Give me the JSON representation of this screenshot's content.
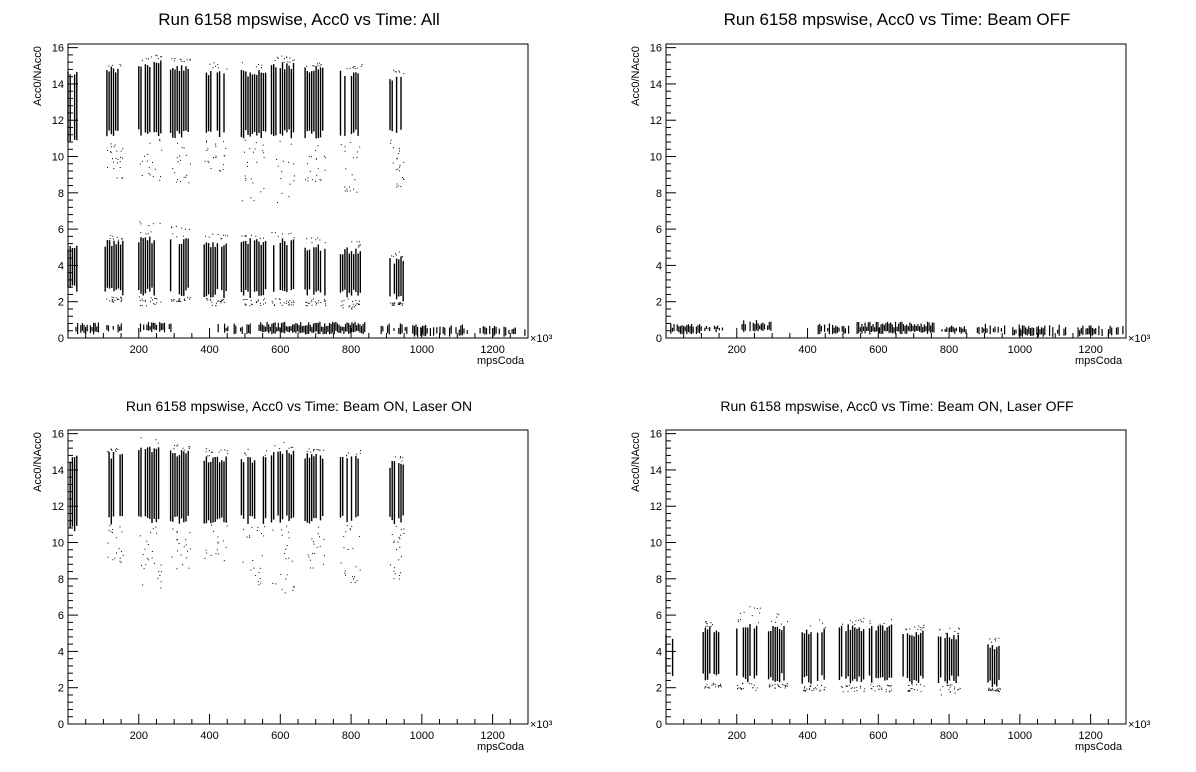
{
  "chart_data": [
    {
      "type": "scatter",
      "title": "Run 6158 mpswise, Acc0 vs Time: All",
      "xlabel": "mpsCoda",
      "ylabel": "Acc0/NAcc0",
      "x_multiplier_label": "×10³",
      "xlim": [
        0,
        1300
      ],
      "ylim": [
        0,
        16.2
      ],
      "x_ticks": [
        200,
        400,
        600,
        800,
        1000,
        1200
      ],
      "y_ticks": [
        0,
        2,
        4,
        6,
        8,
        10,
        12,
        14,
        16
      ],
      "series": [
        {
          "bands": [
            {
              "x": [
                0,
                30
              ],
              "y": [
                10.5,
                14.8
              ]
            },
            {
              "x": [
                110,
                155
              ],
              "y": [
                11.0,
                15.0
              ],
              "ext": [
                8.8,
                15.2
              ]
            },
            {
              "x": [
                200,
                265
              ],
              "y": [
                11.0,
                15.3
              ],
              "ext": [
                8.7,
                15.7
              ]
            },
            {
              "x": [
                290,
                345
              ],
              "y": [
                11.0,
                15.1
              ],
              "ext": [
                8.5,
                15.5
              ]
            },
            {
              "x": [
                385,
                450
              ],
              "y": [
                11.0,
                14.8
              ],
              "ext": [
                9.2,
                15.2
              ]
            },
            {
              "x": [
                490,
                560
              ],
              "y": [
                11.0,
                14.8
              ],
              "ext": [
                7.5,
                15.2
              ]
            },
            {
              "x": [
                575,
                640
              ],
              "y": [
                11.0,
                15.2
              ],
              "ext": [
                7.2,
                15.6
              ]
            },
            {
              "x": [
                670,
                730
              ],
              "y": [
                11.0,
                15.0
              ],
              "ext": [
                8.6,
                15.2
              ]
            },
            {
              "x": [
                770,
                830
              ],
              "y": [
                11.0,
                14.8
              ],
              "ext": [
                8.0,
                15.1
              ]
            },
            {
              "x": [
                910,
                950
              ],
              "y": [
                11.0,
                14.5
              ],
              "ext": [
                8.2,
                14.8
              ]
            },
            {
              "x": [
                0,
                30
              ],
              "y": [
                2.5,
                5.2
              ]
            },
            {
              "x": [
                105,
                155
              ],
              "y": [
                2.3,
                5.4
              ],
              "ext": [
                2.0,
                5.7
              ]
            },
            {
              "x": [
                200,
                265
              ],
              "y": [
                2.3,
                5.6
              ],
              "ext": [
                1.8,
                6.5
              ]
            },
            {
              "x": [
                290,
                345
              ],
              "y": [
                2.3,
                5.5
              ],
              "ext": [
                2.0,
                6.2
              ]
            },
            {
              "x": [
                385,
                450
              ],
              "y": [
                2.2,
                5.3
              ],
              "ext": [
                1.8,
                5.8
              ]
            },
            {
              "x": [
                490,
                560
              ],
              "y": [
                2.2,
                5.5
              ],
              "ext": [
                1.8,
                5.9
              ]
            },
            {
              "x": [
                575,
                640
              ],
              "y": [
                2.2,
                5.5
              ],
              "ext": [
                1.8,
                5.9
              ]
            },
            {
              "x": [
                670,
                730
              ],
              "y": [
                2.2,
                5.2
              ],
              "ext": [
                1.8,
                5.6
              ]
            },
            {
              "x": [
                770,
                830
              ],
              "y": [
                2.2,
                5.0
              ],
              "ext": [
                1.6,
                5.4
              ]
            },
            {
              "x": [
                910,
                950
              ],
              "y": [
                2.0,
                4.5
              ],
              "ext": [
                1.8,
                4.8
              ]
            }
          ],
          "baseline": [
            {
              "x": [
                0,
                90
              ],
              "y": [
                0.2,
                0.9
              ]
            },
            {
              "x": [
                110,
                160
              ],
              "y": [
                0.3,
                0.8
              ]
            },
            {
              "x": [
                205,
                300
              ],
              "y": [
                0.3,
                0.9
              ]
            },
            {
              "x": [
                420,
                520
              ],
              "y": [
                0.2,
                0.8
              ]
            },
            {
              "x": [
                540,
                840
              ],
              "y": [
                0.2,
                0.9
              ]
            },
            {
              "x": [
                885,
                960
              ],
              "y": [
                0.2,
                0.8
              ]
            },
            {
              "x": [
                970,
                1140
              ],
              "y": [
                0.05,
                0.75
              ]
            },
            {
              "x": [
                1160,
                1300
              ],
              "y": [
                0.05,
                0.7
              ]
            }
          ]
        }
      ]
    },
    {
      "type": "scatter",
      "title": "Run 6158 mpswise, Acc0 vs Time: Beam OFF",
      "xlabel": "mpsCoda",
      "ylabel": "Acc0/NAcc0",
      "x_multiplier_label": "×10³",
      "xlim": [
        0,
        1300
      ],
      "ylim": [
        0,
        16.2
      ],
      "x_ticks": [
        200,
        400,
        600,
        800,
        1000,
        1200
      ],
      "y_ticks": [
        0,
        2,
        4,
        6,
        8,
        10,
        12,
        14,
        16
      ],
      "series": [
        {
          "bands": [],
          "baseline": [
            {
              "x": [
                0,
                100
              ],
              "y": [
                0.2,
                0.8
              ]
            },
            {
              "x": [
                110,
                160
              ],
              "y": [
                0.3,
                0.7
              ]
            },
            {
              "x": [
                215,
                300
              ],
              "y": [
                0.3,
                1.0
              ]
            },
            {
              "x": [
                430,
                520
              ],
              "y": [
                0.2,
                0.8
              ]
            },
            {
              "x": [
                540,
                760
              ],
              "y": [
                0.2,
                0.9
              ]
            },
            {
              "x": [
                780,
                850
              ],
              "y": [
                0.2,
                0.7
              ]
            },
            {
              "x": [
                880,
                960
              ],
              "y": [
                0.2,
                0.8
              ]
            },
            {
              "x": [
                980,
                1140
              ],
              "y": [
                0.05,
                0.75
              ]
            },
            {
              "x": [
                1160,
                1300
              ],
              "y": [
                0.05,
                0.7
              ]
            }
          ]
        }
      ]
    },
    {
      "type": "scatter",
      "title": "Run 6158 mpswise, Acc0 vs Time: Beam ON, Laser ON",
      "xlabel": "mpsCoda",
      "ylabel": "Acc0/NAcc0",
      "x_multiplier_label": "×10³",
      "xlim": [
        0,
        1300
      ],
      "ylim": [
        0,
        16.2
      ],
      "x_ticks": [
        200,
        400,
        600,
        800,
        1000,
        1200
      ],
      "y_ticks": [
        0,
        2,
        4,
        6,
        8,
        10,
        12,
        14,
        16
      ],
      "series": [
        {
          "bands": [
            {
              "x": [
                0,
                30
              ],
              "y": [
                10.5,
                14.8
              ]
            },
            {
              "x": [
                110,
                155
              ],
              "y": [
                11.0,
                15.0
              ],
              "ext": [
                8.8,
                15.2
              ]
            },
            {
              "x": [
                200,
                265
              ],
              "y": [
                11.0,
                15.3
              ],
              "ext": [
                7.5,
                15.8
              ]
            },
            {
              "x": [
                290,
                345
              ],
              "y": [
                11.0,
                15.1
              ],
              "ext": [
                8.5,
                15.5
              ]
            },
            {
              "x": [
                385,
                450
              ],
              "y": [
                11.0,
                14.8
              ],
              "ext": [
                8.8,
                15.2
              ]
            },
            {
              "x": [
                490,
                560
              ],
              "y": [
                11.0,
                14.8
              ],
              "ext": [
                7.5,
                15.2
              ]
            },
            {
              "x": [
                575,
                640
              ],
              "y": [
                11.0,
                15.2
              ],
              "ext": [
                7.0,
                15.6
              ]
            },
            {
              "x": [
                670,
                730
              ],
              "y": [
                11.0,
                15.0
              ],
              "ext": [
                8.5,
                15.2
              ]
            },
            {
              "x": [
                770,
                830
              ],
              "y": [
                11.0,
                14.8
              ],
              "ext": [
                7.8,
                15.1
              ]
            },
            {
              "x": [
                910,
                950
              ],
              "y": [
                11.0,
                14.5
              ],
              "ext": [
                8.0,
                14.8
              ]
            }
          ],
          "baseline": []
        }
      ]
    },
    {
      "type": "scatter",
      "title": "Run 6158 mpswise, Acc0 vs Time: Beam ON, Laser OFF",
      "xlabel": "mpsCoda",
      "ylabel": "Acc0/NAcc0",
      "x_multiplier_label": "×10³",
      "xlim": [
        0,
        1300
      ],
      "ylim": [
        0,
        16.2
      ],
      "x_ticks": [
        200,
        400,
        600,
        800,
        1000,
        1200
      ],
      "y_ticks": [
        0,
        2,
        4,
        6,
        8,
        10,
        12,
        14,
        16
      ],
      "series": [
        {
          "bands": [
            {
              "x": [
                0,
                30
              ],
              "y": [
                2.5,
                5.0
              ]
            },
            {
              "x": [
                105,
                155
              ],
              "y": [
                2.3,
                5.4
              ],
              "ext": [
                2.0,
                5.7
              ]
            },
            {
              "x": [
                200,
                265
              ],
              "y": [
                2.3,
                5.6
              ],
              "ext": [
                1.8,
                6.6
              ]
            },
            {
              "x": [
                290,
                345
              ],
              "y": [
                2.3,
                5.5
              ],
              "ext": [
                2.0,
                6.2
              ]
            },
            {
              "x": [
                385,
                450
              ],
              "y": [
                2.2,
                5.3
              ],
              "ext": [
                1.8,
                5.8
              ]
            },
            {
              "x": [
                490,
                560
              ],
              "y": [
                2.2,
                5.5
              ],
              "ext": [
                1.8,
                5.9
              ]
            },
            {
              "x": [
                575,
                640
              ],
              "y": [
                2.2,
                5.5
              ],
              "ext": [
                1.8,
                5.9
              ]
            },
            {
              "x": [
                670,
                730
              ],
              "y": [
                2.2,
                5.2
              ],
              "ext": [
                1.8,
                5.6
              ]
            },
            {
              "x": [
                770,
                830
              ],
              "y": [
                2.2,
                5.0
              ],
              "ext": [
                1.6,
                5.4
              ]
            },
            {
              "x": [
                910,
                950
              ],
              "y": [
                2.0,
                4.5
              ],
              "ext": [
                1.8,
                4.8
              ]
            }
          ],
          "baseline": []
        }
      ]
    }
  ]
}
